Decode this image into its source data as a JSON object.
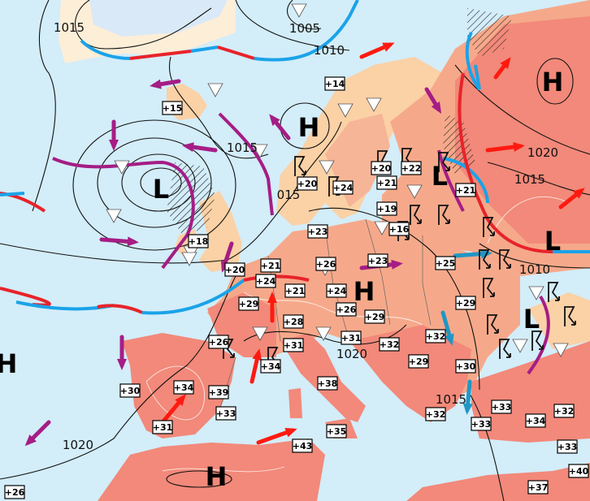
{
  "map": {
    "colors": {
      "sea": "#d3edf9",
      "land_cool": "#fbd1a6",
      "land_warm": "#f6a98a",
      "land_hot": "#f2897a",
      "ice": "#e6f1fb",
      "warm_front": "#e8232a",
      "cold_front": "#1aa3e8",
      "occluded_front": "#a51d85",
      "warm_arrow": "#ff1a10",
      "cold_arrow": "#2196c4",
      "occluded_arrow": "#a51d85"
    },
    "pressure_centers": [
      {
        "type": "H"
      },
      {
        "type": "H"
      },
      {
        "type": "L"
      },
      {
        "type": "L"
      },
      {
        "type": "L"
      },
      {
        "type": "L"
      },
      {
        "type": "H"
      },
      {
        "type": "H"
      },
      {
        "type": "H"
      }
    ],
    "isobar_labels": [
      "1015",
      "1005",
      "1010",
      "1015",
      "1020",
      "1015",
      "1010",
      "1020",
      "1020",
      "1015",
      "015"
    ],
    "temperatures": [
      "+14",
      "+15",
      "+20",
      "+24",
      "+20",
      "+22",
      "+21",
      "+21",
      "+19",
      "+16",
      "+23",
      "+18",
      "+20",
      "+21",
      "+26",
      "+23",
      "+25",
      "+24",
      "+21",
      "+24",
      "+29",
      "+26",
      "+29",
      "+28",
      "+31",
      "+32",
      "+26",
      "+31",
      "+32",
      "+29",
      "+29",
      "+30",
      "+34",
      "+38",
      "+30",
      "+34",
      "+39",
      "+33",
      "+31",
      "+32",
      "+33",
      "+33",
      "+34",
      "+32",
      "+35",
      "+43",
      "+33",
      "+40",
      "+37",
      "+26"
    ],
    "symbols": {
      "shower": "shower-triangle-icon",
      "thunderstorm": "thunderstorm-icon",
      "hatched": "precipitation-hatch"
    }
  }
}
